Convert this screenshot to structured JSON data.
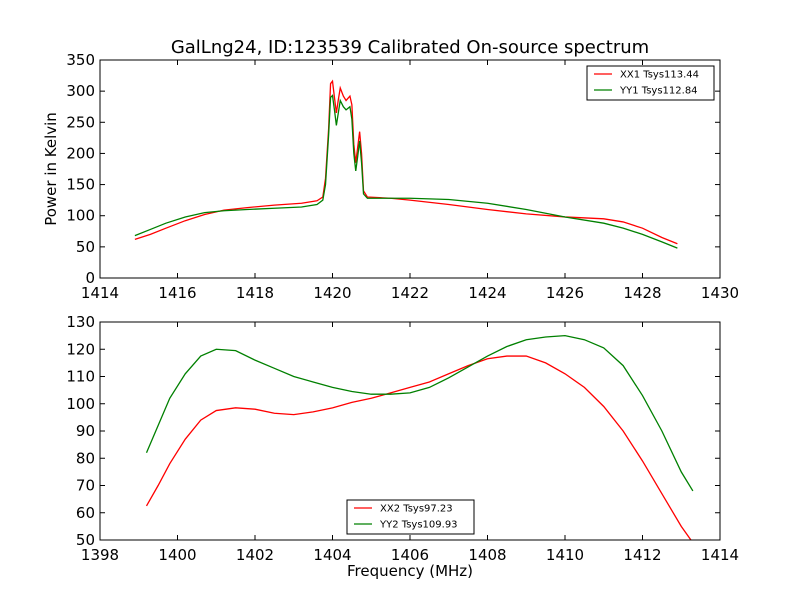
{
  "figure": {
    "title": "GalLng24, ID:123539 Calibrated On-source spectrum",
    "xlabel": "Frequency (MHz)",
    "background": "#ffffff"
  },
  "chart_data": [
    {
      "type": "line",
      "ylabel": "Power in Kelvin",
      "xlabel": "",
      "xlim": [
        1414,
        1430
      ],
      "ylim": [
        0,
        350
      ],
      "xticks": [
        "1414",
        "1416",
        "1418",
        "1420",
        "1422",
        "1424",
        "1426",
        "1428",
        "1430"
      ],
      "yticks": [
        "0",
        "50",
        "100",
        "150",
        "200",
        "250",
        "300",
        "350"
      ],
      "grid": false,
      "legend_position": "top-right",
      "series": [
        {
          "name": "XX1 Tsys113.44",
          "color": "#ff0000",
          "points": [
            [
              1414.9,
              62
            ],
            [
              1415.3,
              70
            ],
            [
              1415.7,
              80
            ],
            [
              1416.2,
              92
            ],
            [
              1416.7,
              102
            ],
            [
              1417.2,
              109
            ],
            [
              1417.8,
              113
            ],
            [
              1418.5,
              117
            ],
            [
              1419.2,
              120
            ],
            [
              1419.6,
              124
            ],
            [
              1419.75,
              130
            ],
            [
              1419.82,
              160
            ],
            [
              1419.9,
              240
            ],
            [
              1419.95,
              312
            ],
            [
              1420.0,
              316
            ],
            [
              1420.05,
              290
            ],
            [
              1420.1,
              265
            ],
            [
              1420.15,
              286
            ],
            [
              1420.2,
              305
            ],
            [
              1420.28,
              292
            ],
            [
              1420.35,
              285
            ],
            [
              1420.45,
              292
            ],
            [
              1420.5,
              278
            ],
            [
              1420.55,
              215
            ],
            [
              1420.6,
              185
            ],
            [
              1420.65,
              210
            ],
            [
              1420.7,
              235
            ],
            [
              1420.75,
              200
            ],
            [
              1420.8,
              140
            ],
            [
              1420.9,
              130
            ],
            [
              1421.5,
              128
            ],
            [
              1422.0,
              125
            ],
            [
              1423.0,
              118
            ],
            [
              1424.0,
              110
            ],
            [
              1425.0,
              103
            ],
            [
              1426.0,
              98
            ],
            [
              1427.0,
              95
            ],
            [
              1427.5,
              90
            ],
            [
              1428.0,
              80
            ],
            [
              1428.5,
              65
            ],
            [
              1428.9,
              55
            ]
          ]
        },
        {
          "name": "YY1 Tsys112.84",
          "color": "#008000",
          "points": [
            [
              1414.9,
              68
            ],
            [
              1415.3,
              78
            ],
            [
              1415.7,
              88
            ],
            [
              1416.2,
              98
            ],
            [
              1416.7,
              105
            ],
            [
              1417.2,
              108
            ],
            [
              1417.8,
              110
            ],
            [
              1418.5,
              112
            ],
            [
              1419.2,
              114
            ],
            [
              1419.6,
              118
            ],
            [
              1419.75,
              125
            ],
            [
              1419.82,
              150
            ],
            [
              1419.9,
              230
            ],
            [
              1419.95,
              290
            ],
            [
              1420.0,
              293
            ],
            [
              1420.05,
              270
            ],
            [
              1420.1,
              245
            ],
            [
              1420.15,
              265
            ],
            [
              1420.2,
              285
            ],
            [
              1420.28,
              275
            ],
            [
              1420.35,
              270
            ],
            [
              1420.45,
              275
            ],
            [
              1420.5,
              255
            ],
            [
              1420.55,
              200
            ],
            [
              1420.6,
              172
            ],
            [
              1420.65,
              195
            ],
            [
              1420.7,
              220
            ],
            [
              1420.75,
              185
            ],
            [
              1420.8,
              135
            ],
            [
              1420.9,
              128
            ],
            [
              1421.5,
              128
            ],
            [
              1422.0,
              128
            ],
            [
              1423.0,
              126
            ],
            [
              1424.0,
              120
            ],
            [
              1425.0,
              110
            ],
            [
              1426.0,
              98
            ],
            [
              1427.0,
              88
            ],
            [
              1427.5,
              80
            ],
            [
              1428.0,
              70
            ],
            [
              1428.5,
              58
            ],
            [
              1428.9,
              48
            ]
          ]
        }
      ]
    },
    {
      "type": "line",
      "ylabel": "",
      "xlabel": "Frequency (MHz)",
      "xlim": [
        1398,
        1414
      ],
      "ylim": [
        50,
        130
      ],
      "xticks": [
        "1398",
        "1400",
        "1402",
        "1404",
        "1406",
        "1408",
        "1410",
        "1412",
        "1414"
      ],
      "yticks": [
        "50",
        "60",
        "70",
        "80",
        "90",
        "100",
        "110",
        "120",
        "130"
      ],
      "grid": false,
      "legend_position": "bottom-center",
      "series": [
        {
          "name": "XX2 Tsys97.23",
          "color": "#ff0000",
          "points": [
            [
              1399.2,
              62.5
            ],
            [
              1399.5,
              70
            ],
            [
              1399.8,
              78
            ],
            [
              1400.2,
              87
            ],
            [
              1400.6,
              94
            ],
            [
              1401.0,
              97.5
            ],
            [
              1401.5,
              98.5
            ],
            [
              1402.0,
              98
            ],
            [
              1402.5,
              96.5
            ],
            [
              1403.0,
              96
            ],
            [
              1403.5,
              97
            ],
            [
              1404.0,
              98.5
            ],
            [
              1404.5,
              100.5
            ],
            [
              1405.0,
              102
            ],
            [
              1405.5,
              104
            ],
            [
              1406.0,
              106
            ],
            [
              1406.5,
              108
            ],
            [
              1407.0,
              111
            ],
            [
              1407.5,
              114
            ],
            [
              1408.0,
              116.5
            ],
            [
              1408.5,
              117.5
            ],
            [
              1409.0,
              117.5
            ],
            [
              1409.5,
              115
            ],
            [
              1410.0,
              111
            ],
            [
              1410.5,
              106
            ],
            [
              1411.0,
              99
            ],
            [
              1411.5,
              90
            ],
            [
              1412.0,
              79
            ],
            [
              1412.5,
              67
            ],
            [
              1413.0,
              55
            ],
            [
              1413.3,
              49
            ]
          ]
        },
        {
          "name": "YY2 Tsys109.93",
          "color": "#008000",
          "points": [
            [
              1399.2,
              82
            ],
            [
              1399.5,
              92
            ],
            [
              1399.8,
              102
            ],
            [
              1400.2,
              111
            ],
            [
              1400.6,
              117.5
            ],
            [
              1401.0,
              120
            ],
            [
              1401.5,
              119.5
            ],
            [
              1402.0,
              116
            ],
            [
              1402.5,
              113
            ],
            [
              1403.0,
              110
            ],
            [
              1403.5,
              108
            ],
            [
              1404.0,
              106
            ],
            [
              1404.5,
              104.5
            ],
            [
              1405.0,
              103.5
            ],
            [
              1405.5,
              103.5
            ],
            [
              1406.0,
              104
            ],
            [
              1406.5,
              106
            ],
            [
              1407.0,
              109.5
            ],
            [
              1407.5,
              113.5
            ],
            [
              1408.0,
              117.5
            ],
            [
              1408.5,
              121
            ],
            [
              1409.0,
              123.5
            ],
            [
              1409.5,
              124.5
            ],
            [
              1410.0,
              125
            ],
            [
              1410.5,
              123.5
            ],
            [
              1411.0,
              120.5
            ],
            [
              1411.5,
              114
            ],
            [
              1412.0,
              103
            ],
            [
              1412.5,
              90
            ],
            [
              1413.0,
              75
            ],
            [
              1413.3,
              68
            ]
          ]
        }
      ]
    }
  ]
}
